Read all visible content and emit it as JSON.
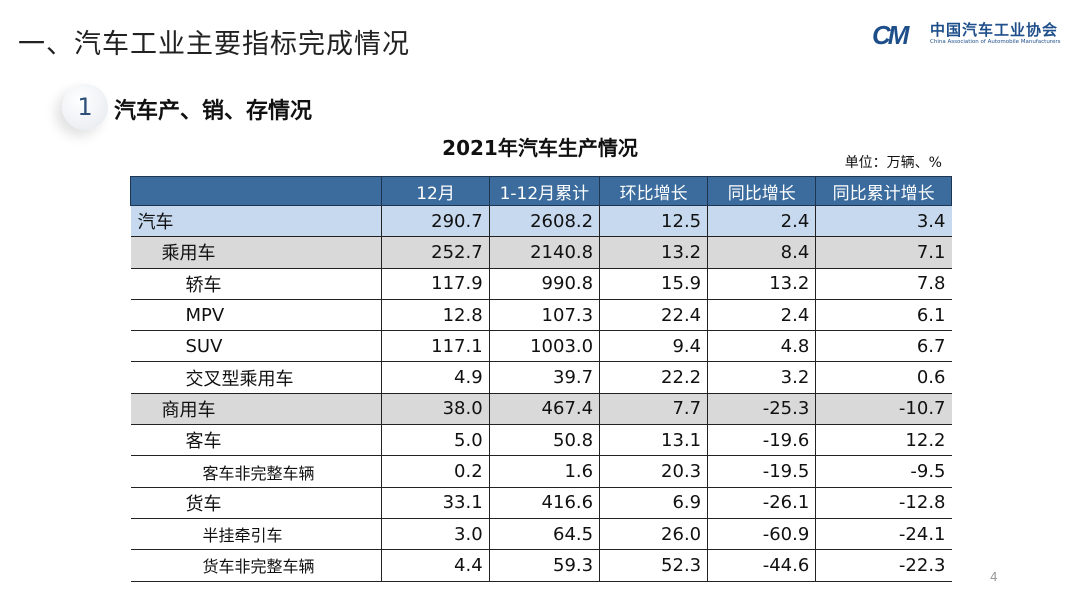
{
  "header": {
    "title": "一、汽车工业主要指标完成情况"
  },
  "logo": {
    "mark": "CM",
    "name_cn": "中国汽车工业协会",
    "name_en": "China Association of Automobile Manufacturers"
  },
  "section": {
    "number": "1",
    "label": "汽车产、销、存情况"
  },
  "table": {
    "title": "2021年汽车生产情况",
    "unit": "单位：万辆、%",
    "columns": [
      "",
      "12月",
      "1-12月累计",
      "环比增长",
      "同比增长",
      "同比累计增长"
    ],
    "rows": [
      {
        "name": "汽车",
        "level": 0,
        "highlight": "blue",
        "values": [
          "290.7",
          "2608.2",
          "12.5",
          "2.4",
          "3.4"
        ]
      },
      {
        "name": "乘用车",
        "level": 1,
        "highlight": "gray",
        "values": [
          "252.7",
          "2140.8",
          "13.2",
          "8.4",
          "7.1"
        ]
      },
      {
        "name": "轿车",
        "level": 2,
        "values": [
          "117.9",
          "990.8",
          "15.9",
          "13.2",
          "7.8"
        ]
      },
      {
        "name": "MPV",
        "level": 2,
        "values": [
          "12.8",
          "107.3",
          "22.4",
          "2.4",
          "6.1"
        ]
      },
      {
        "name": "SUV",
        "level": 2,
        "values": [
          "117.1",
          "1003.0",
          "9.4",
          "4.8",
          "6.7"
        ]
      },
      {
        "name": "交叉型乘用车",
        "level": 2,
        "values": [
          "4.9",
          "39.7",
          "22.2",
          "3.2",
          "0.6"
        ]
      },
      {
        "name": "商用车",
        "level": 1,
        "highlight": "gray",
        "values": [
          "38.0",
          "467.4",
          "7.7",
          "-25.3",
          "-10.7"
        ]
      },
      {
        "name": "客车",
        "level": 2,
        "values": [
          "5.0",
          "50.8",
          "13.1",
          "-19.6",
          "12.2"
        ]
      },
      {
        "name": "客车非完整车辆",
        "level": 3,
        "values": [
          "0.2",
          "1.6",
          "20.3",
          "-19.5",
          "-9.5"
        ]
      },
      {
        "name": "货车",
        "level": 2,
        "values": [
          "33.1",
          "416.6",
          "6.9",
          "-26.1",
          "-12.8"
        ]
      },
      {
        "name": "半挂牵引车",
        "level": 3,
        "values": [
          "3.0",
          "64.5",
          "26.0",
          "-60.9",
          "-24.1"
        ]
      },
      {
        "name": "货车非完整车辆",
        "level": 3,
        "values": [
          "4.4",
          "59.3",
          "52.3",
          "-44.6",
          "-22.3"
        ]
      }
    ]
  },
  "page_number": "4",
  "colors": {
    "header_blue": "#3b6c9d",
    "row_blue": "#c6d9ef",
    "row_gray": "#d9d9d9",
    "logo_blue": "#1f4f8a"
  }
}
